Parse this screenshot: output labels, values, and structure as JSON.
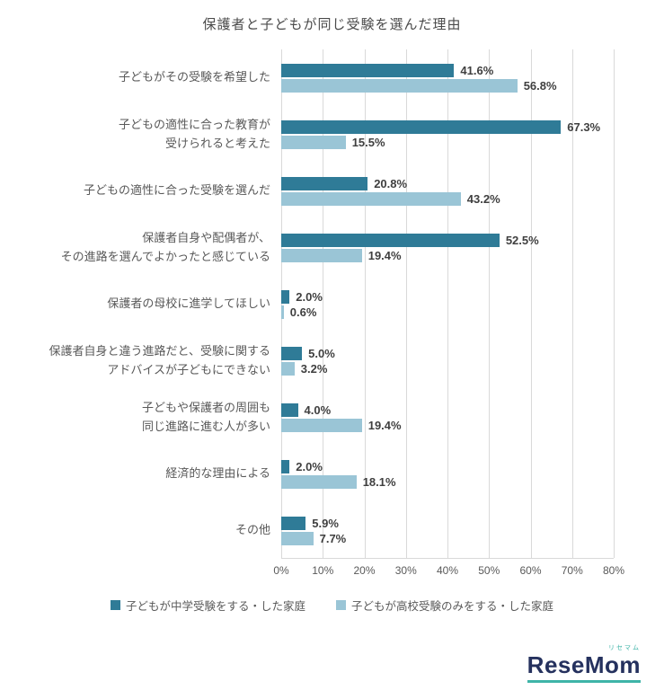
{
  "page": {
    "title": "保護者と子どもが同じ受験を選んだ理由"
  },
  "chart_data": {
    "type": "bar",
    "orientation": "horizontal",
    "title": "保護者と子どもが同じ受験を選んだ理由",
    "categories": [
      "子どもがその受験を希望した",
      "子どもの適性に合った教育が\n受けられると考えた",
      "子どもの適性に合った受験を選んだ",
      "保護者自身や配偶者が、\nその進路を選んでよかったと感じている",
      "保護者の母校に進学してほしい",
      "保護者自身と違う進路だと、受験に関する\nアドバイスが子どもにできない",
      "子どもや保護者の周囲も\n同じ進路に進む人が多い",
      "経済的な理由による",
      "その他"
    ],
    "series": [
      {
        "name": "子どもが中学受験をする・した家庭",
        "color": "#2f7b97",
        "values": [
          41.6,
          67.3,
          20.8,
          52.5,
          2.0,
          5.0,
          4.0,
          2.0,
          5.9
        ]
      },
      {
        "name": "子どもが高校受験のみをする・した家庭",
        "color": "#9ac5d6",
        "values": [
          56.8,
          15.5,
          43.2,
          19.4,
          0.6,
          3.2,
          19.4,
          18.1,
          7.7
        ]
      }
    ],
    "xlim": [
      0,
      80
    ],
    "x_ticks": [
      "0%",
      "10%",
      "20%",
      "30%",
      "40%",
      "50%",
      "60%",
      "70%",
      "80%"
    ],
    "grid": true,
    "legend_position": "bottom",
    "value_label_format": "percent_one_decimal"
  },
  "logo": {
    "text": "ReseMom",
    "ruby": "リセマム"
  },
  "colors": {
    "series1": "#2f7b97",
    "series2": "#9ac5d6",
    "grid": "#d9d9d9",
    "category_text": "#595959",
    "value_text": "#3f3f3f",
    "logo_navy": "#25315e",
    "logo_teal": "#3fb4a8"
  }
}
